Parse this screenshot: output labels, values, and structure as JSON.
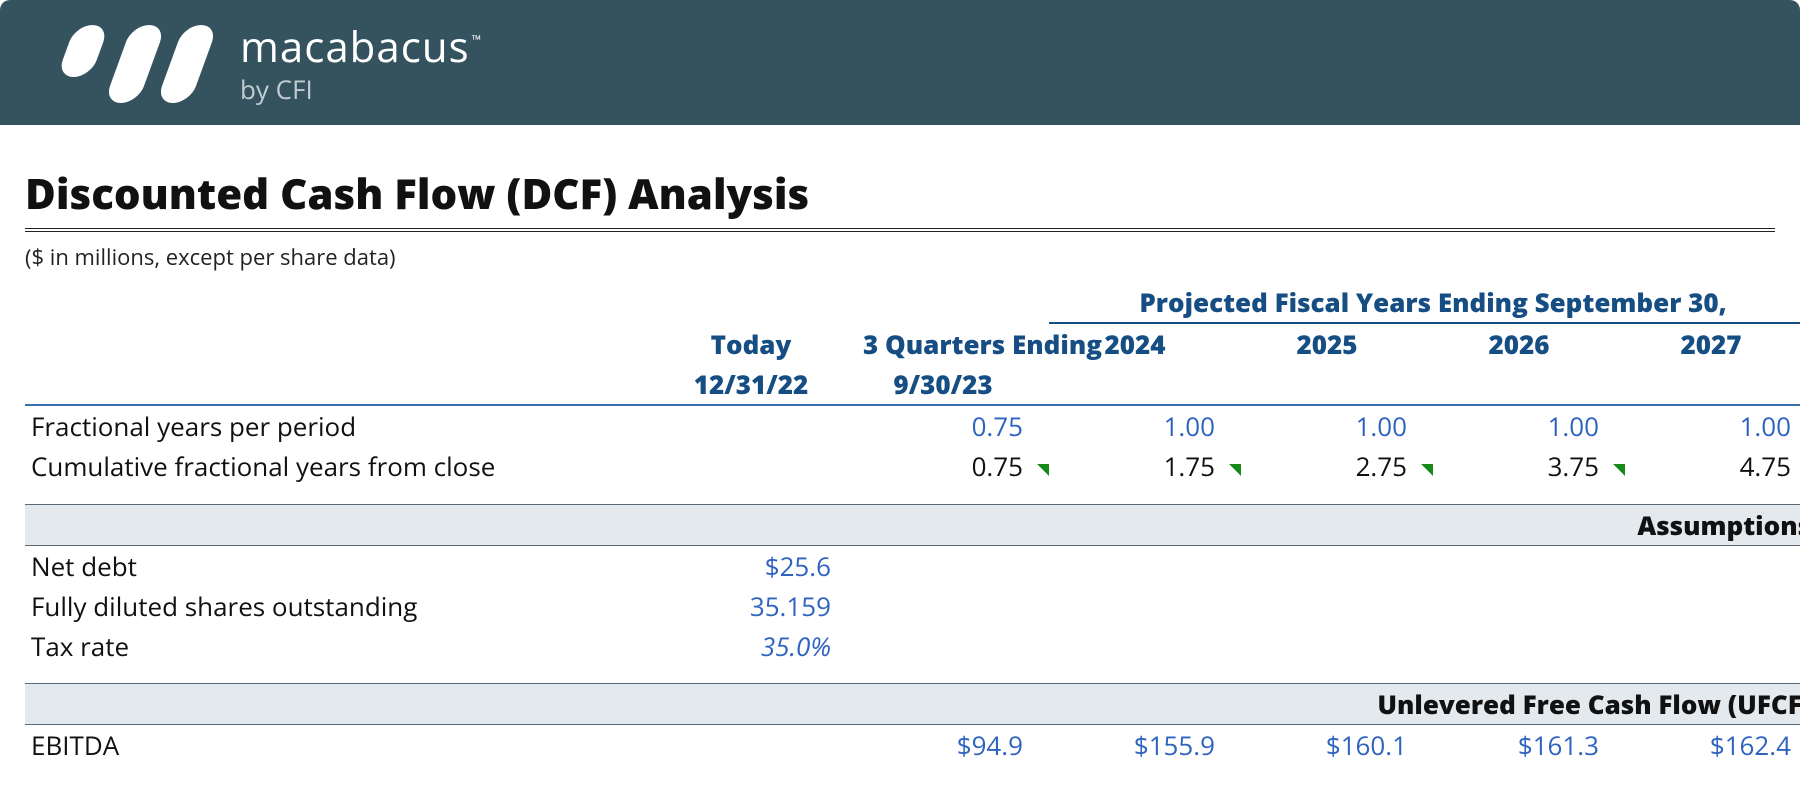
{
  "brand": {
    "name": "macabacus",
    "tm": "™",
    "byline": "by CFI"
  },
  "page": {
    "title": "Discounted Cash Flow (DCF) Analysis",
    "subtitle": "($ in millions, except per share data)"
  },
  "headers": {
    "today_top": "Today",
    "today_sub": "12/31/22",
    "stub_top": "3 Quarters Ending",
    "stub_sub": "9/30/23",
    "proj_span": "Projected Fiscal Years Ending September 30,",
    "years": [
      "2024",
      "2025",
      "2026",
      "2027"
    ]
  },
  "rows": {
    "frac_per_period": {
      "label": "Fractional years per period",
      "today": "",
      "stub": "0.75",
      "y": [
        "1.00",
        "1.00",
        "1.00",
        "1.00"
      ],
      "color": "blue"
    },
    "cum_frac": {
      "label": "Cumulative fractional years from close",
      "today": "",
      "stub": "0.75",
      "y": [
        "1.75",
        "2.75",
        "3.75",
        "4.75"
      ],
      "color": "black",
      "marks": true
    }
  },
  "sections": {
    "assumptions": "Assumptions",
    "ufcf": "Unlevered Free Cash Flow (UFCF)"
  },
  "assumptions": {
    "net_debt": {
      "label": "Net debt",
      "value": "$25.6",
      "style": "blue"
    },
    "fdso": {
      "label": "Fully diluted shares outstanding",
      "value": "35.159",
      "style": "blue"
    },
    "tax_rate": {
      "label": "Tax rate",
      "value": "35.0%",
      "style": "blue-italic"
    }
  },
  "ufcf": {
    "ebitda": {
      "label": "EBITDA",
      "today": "",
      "stub": "$94.9",
      "y": [
        "$155.9",
        "$160.1",
        "$161.3",
        "$162.4"
      ],
      "color": "blue"
    }
  },
  "colors": {
    "header_bg": "#34535e",
    "accent_blue": "#164e84",
    "value_blue": "#2f63c0",
    "section_bg": "#e4e9ee",
    "mark_green": "#1a8a1a"
  }
}
